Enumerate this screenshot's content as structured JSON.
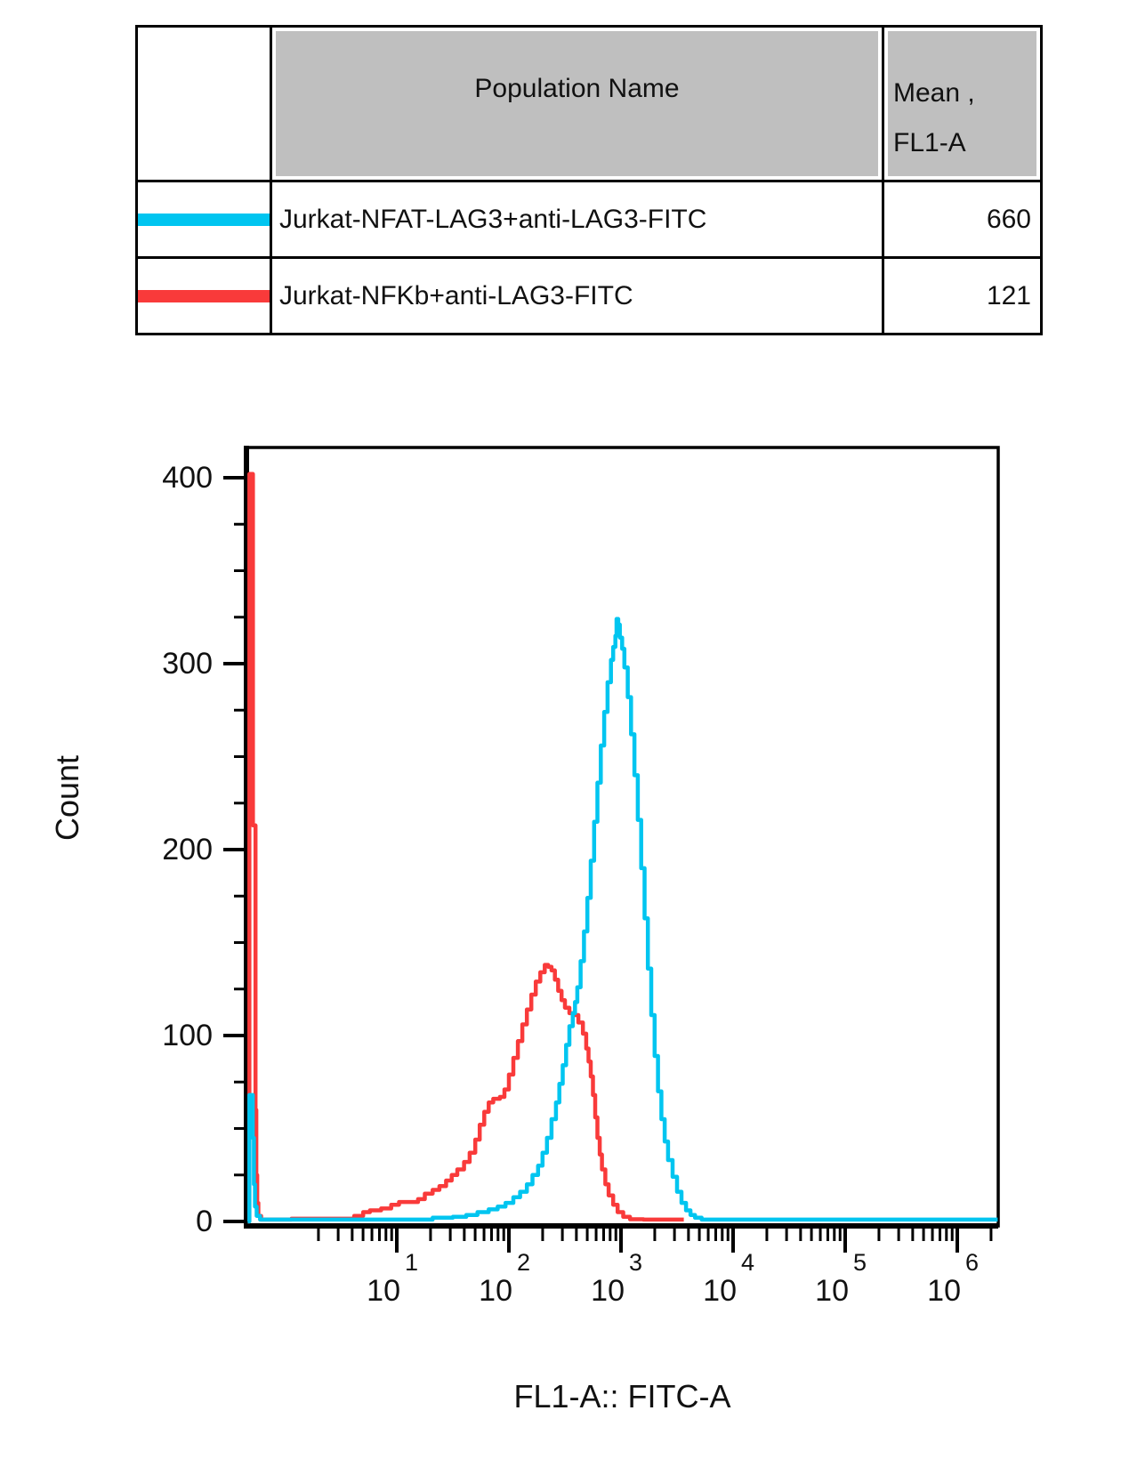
{
  "table": {
    "header": {
      "population": "Population Name",
      "mean_line1": "Mean ,",
      "mean_line2": "FL1-A"
    },
    "rows": [
      {
        "population": "Jurkat-NFAT-LAG3+anti-LAG3-FITC",
        "mean": "660",
        "color": "#00C5F0"
      },
      {
        "population": "Jurkat-NFKb+anti-LAG3-FITC",
        "mean": "121",
        "color": "#F93A3A"
      }
    ]
  },
  "colors": {
    "header_fill": "#BFBFBF",
    "axis": "#000000",
    "background": "#FFFFFF",
    "cyan_series": "#00C5F0",
    "red_series": "#F93A3A"
  },
  "chart_data": {
    "type": "line",
    "subtype": "flow-cytometry-histogram-overlay",
    "title": "",
    "xlabel": "FL1-A:: FITC-A",
    "ylabel": "Count",
    "x_scale": "log10",
    "x_decades_labeled": [
      1,
      2,
      3,
      4,
      5,
      6
    ],
    "x_range_log10": [
      -0.34,
      6.36
    ],
    "ylim": [
      0,
      415
    ],
    "y_major_ticks": [
      0,
      100,
      200,
      300,
      400
    ],
    "y_minor_step": 25,
    "grid": false,
    "legend_position": "table-above",
    "series": [
      {
        "name": "Jurkat-NFAT-LAG3+anti-LAG3-FITC",
        "color": "#00C5F0",
        "mean_fl1a": 660,
        "peak": {
          "x_value": 920,
          "count": 324
        },
        "edge_spike_count": 68,
        "points_log10x_count": [
          [
            -0.33,
            0
          ],
          [
            -0.315,
            68
          ],
          [
            -0.295,
            68
          ],
          [
            -0.285,
            45
          ],
          [
            -0.275,
            20
          ],
          [
            -0.265,
            8
          ],
          [
            -0.25,
            3
          ],
          [
            -0.22,
            1
          ],
          [
            1.22,
            1
          ],
          [
            1.32,
            2
          ],
          [
            1.5,
            2.5
          ],
          [
            1.62,
            3.5
          ],
          [
            1.72,
            5
          ],
          [
            1.82,
            6.5
          ],
          [
            1.9,
            8
          ],
          [
            1.97,
            10
          ],
          [
            2.04,
            13
          ],
          [
            2.1,
            16
          ],
          [
            2.16,
            20
          ],
          [
            2.21,
            25
          ],
          [
            2.26,
            30
          ],
          [
            2.3,
            37
          ],
          [
            2.34,
            45
          ],
          [
            2.38,
            55
          ],
          [
            2.42,
            64
          ],
          [
            2.45,
            74
          ],
          [
            2.48,
            84
          ],
          [
            2.51,
            95
          ],
          [
            2.54,
            105
          ],
          [
            2.57,
            112
          ],
          [
            2.59,
            118
          ],
          [
            2.61,
            126
          ],
          [
            2.64,
            140
          ],
          [
            2.67,
            156
          ],
          [
            2.7,
            174
          ],
          [
            2.73,
            194
          ],
          [
            2.76,
            215
          ],
          [
            2.79,
            236
          ],
          [
            2.82,
            256
          ],
          [
            2.85,
            274
          ],
          [
            2.88,
            290
          ],
          [
            2.91,
            302
          ],
          [
            2.93,
            309
          ],
          [
            2.95,
            315
          ],
          [
            2.96,
            324
          ],
          [
            2.975,
            321
          ],
          [
            2.99,
            314
          ],
          [
            3.01,
            308
          ],
          [
            3.03,
            298
          ],
          [
            3.06,
            282
          ],
          [
            3.09,
            262
          ],
          [
            3.12,
            240
          ],
          [
            3.15,
            216
          ],
          [
            3.18,
            190
          ],
          [
            3.21,
            163
          ],
          [
            3.24,
            136
          ],
          [
            3.27,
            111
          ],
          [
            3.3,
            89
          ],
          [
            3.33,
            70
          ],
          [
            3.36,
            55
          ],
          [
            3.39,
            43
          ],
          [
            3.42,
            33
          ],
          [
            3.46,
            24
          ],
          [
            3.5,
            16
          ],
          [
            3.54,
            10
          ],
          [
            3.58,
            6
          ],
          [
            3.62,
            3.5
          ],
          [
            3.66,
            2
          ],
          [
            3.72,
            1
          ],
          [
            6.36,
            1
          ]
        ]
      },
      {
        "name": "Jurkat-NFKb+anti-LAG3-FITC",
        "color": "#F93A3A",
        "mean_fl1a": 121,
        "peak": {
          "x_value": 210,
          "count": 138
        },
        "edge_spike_count": 402,
        "points_log10x_count": [
          [
            -0.33,
            0
          ],
          [
            -0.315,
            402
          ],
          [
            -0.295,
            402
          ],
          [
            -0.283,
            213
          ],
          [
            -0.268,
            213
          ],
          [
            -0.26,
            60
          ],
          [
            -0.253,
            25
          ],
          [
            -0.245,
            10
          ],
          [
            -0.235,
            3
          ],
          [
            -0.21,
            1
          ],
          [
            0.06,
            1.5
          ],
          [
            0.56,
            1.5
          ],
          [
            0.62,
            3
          ],
          [
            0.7,
            5
          ],
          [
            0.76,
            6
          ],
          [
            0.86,
            7
          ],
          [
            0.95,
            9
          ],
          [
            1.02,
            10.5
          ],
          [
            1.13,
            10.5
          ],
          [
            1.19,
            12
          ],
          [
            1.25,
            15
          ],
          [
            1.32,
            17
          ],
          [
            1.38,
            19
          ],
          [
            1.44,
            22
          ],
          [
            1.49,
            25
          ],
          [
            1.54,
            28
          ],
          [
            1.6,
            32
          ],
          [
            1.65,
            37
          ],
          [
            1.7,
            44
          ],
          [
            1.74,
            52
          ],
          [
            1.78,
            59
          ],
          [
            1.82,
            64
          ],
          [
            1.86,
            66
          ],
          [
            1.92,
            67
          ],
          [
            1.96,
            71
          ],
          [
            2,
            79
          ],
          [
            2.04,
            88
          ],
          [
            2.08,
            97
          ],
          [
            2.12,
            106
          ],
          [
            2.16,
            114
          ],
          [
            2.2,
            122
          ],
          [
            2.24,
            129
          ],
          [
            2.28,
            134
          ],
          [
            2.32,
            138
          ],
          [
            2.35,
            137
          ],
          [
            2.38,
            135
          ],
          [
            2.41,
            130
          ],
          [
            2.44,
            124
          ],
          [
            2.47,
            119
          ],
          [
            2.5,
            115
          ],
          [
            2.54,
            112
          ],
          [
            2.58,
            111
          ],
          [
            2.62,
            107
          ],
          [
            2.66,
            101
          ],
          [
            2.69,
            93
          ],
          [
            2.71,
            86
          ],
          [
            2.73,
            78
          ],
          [
            2.75,
            68
          ],
          [
            2.77,
            56
          ],
          [
            2.79,
            45
          ],
          [
            2.81,
            36
          ],
          [
            2.83,
            28
          ],
          [
            2.86,
            20
          ],
          [
            2.89,
            14
          ],
          [
            2.93,
            9
          ],
          [
            2.97,
            5
          ],
          [
            3.02,
            2.5
          ],
          [
            3.08,
            1.2
          ],
          [
            3.2,
            1
          ],
          [
            3.56,
            1
          ]
        ]
      }
    ]
  }
}
